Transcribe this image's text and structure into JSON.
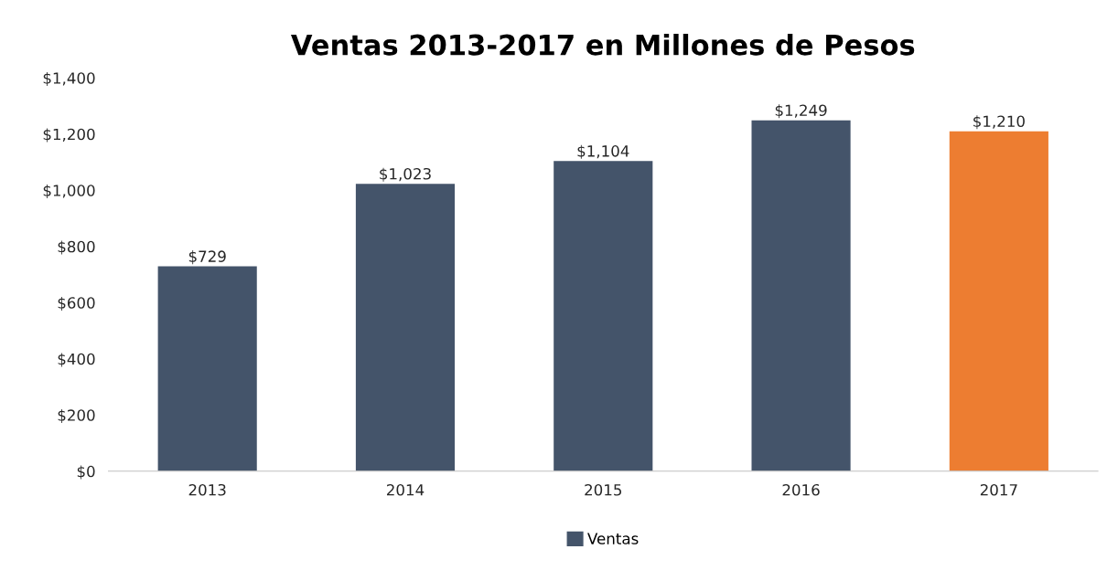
{
  "chart_data": {
    "type": "bar",
    "title": "Ventas 2013-2017 en Millones de Pesos",
    "categories": [
      "2013",
      "2014",
      "2015",
      "2016",
      "2017"
    ],
    "series": [
      {
        "name": "Ventas",
        "color": "#44546a",
        "colors": [
          "#44546a",
          "#44546a",
          "#44546a",
          "#44546a",
          "#ed7d31"
        ],
        "values": [
          729,
          1023,
          1104,
          1249,
          1210
        ],
        "value_labels": [
          "$729",
          "$1,023",
          "$1,104",
          "$1,249",
          "$1,210"
        ]
      }
    ],
    "ylim": [
      0,
      1400
    ],
    "yticks": [
      {
        "value": 0,
        "label": "$0"
      },
      {
        "value": 200,
        "label": "$200"
      },
      {
        "value": 400,
        "label": "$400"
      },
      {
        "value": 600,
        "label": "$600"
      },
      {
        "value": 800,
        "label": "$800"
      },
      {
        "value": 1000,
        "label": "$1,000"
      },
      {
        "value": 1200,
        "label": "$1,200"
      },
      {
        "value": 1400,
        "label": "$1,400"
      }
    ],
    "grid": false,
    "legend": "bottom"
  }
}
